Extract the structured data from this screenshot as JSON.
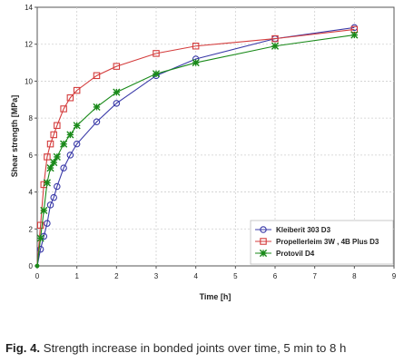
{
  "caption": {
    "label": "Fig. 4.",
    "text": " Strength increase in bonded joints over time, 5 min to 8 h"
  },
  "chart_data": {
    "type": "line",
    "title": "",
    "xlabel": "Time [h]",
    "ylabel": "Shear strength [MPa]",
    "xlim": [
      0,
      9
    ],
    "ylim": [
      0,
      14
    ],
    "xticks": [
      0,
      1,
      2,
      3,
      4,
      5,
      6,
      7,
      8,
      9
    ],
    "yticks": [
      0,
      2,
      4,
      6,
      8,
      10,
      12,
      14
    ],
    "grid": true,
    "legend": "bottom-right",
    "series": [
      {
        "name": "Kleiberit 303 D3",
        "color": "#3a3aa8",
        "marker": "circle",
        "x": [
          0.083,
          0.167,
          0.25,
          0.333,
          0.417,
          0.5,
          0.667,
          0.833,
          1.0,
          1.5,
          2.0,
          3.0,
          4.0,
          6.0,
          8.0
        ],
        "y": [
          0.9,
          1.6,
          2.3,
          3.3,
          3.7,
          4.3,
          5.3,
          6.0,
          6.6,
          7.8,
          8.8,
          10.3,
          11.2,
          12.3,
          12.9
        ]
      },
      {
        "name": "Propellerleim 3W , 4B Plus D3",
        "color": "#d43c3c",
        "marker": "square",
        "x": [
          0.083,
          0.167,
          0.25,
          0.333,
          0.417,
          0.5,
          0.667,
          0.833,
          1.0,
          1.5,
          2.0,
          3.0,
          4.0,
          6.0,
          8.0
        ],
        "y": [
          2.2,
          4.4,
          5.9,
          6.6,
          7.1,
          7.6,
          8.5,
          9.1,
          9.5,
          10.3,
          10.8,
          11.5,
          11.9,
          12.3,
          12.8
        ]
      },
      {
        "name": "Protovil D4",
        "color": "#1a8a1a",
        "marker": "star",
        "x": [
          0.083,
          0.167,
          0.25,
          0.333,
          0.417,
          0.5,
          0.667,
          0.833,
          1.0,
          1.5,
          2.0,
          3.0,
          4.0,
          6.0,
          8.0
        ],
        "y": [
          1.5,
          3.0,
          4.5,
          5.3,
          5.6,
          5.9,
          6.6,
          7.1,
          7.6,
          8.6,
          9.4,
          10.4,
          11.0,
          11.9,
          12.5
        ]
      }
    ]
  }
}
